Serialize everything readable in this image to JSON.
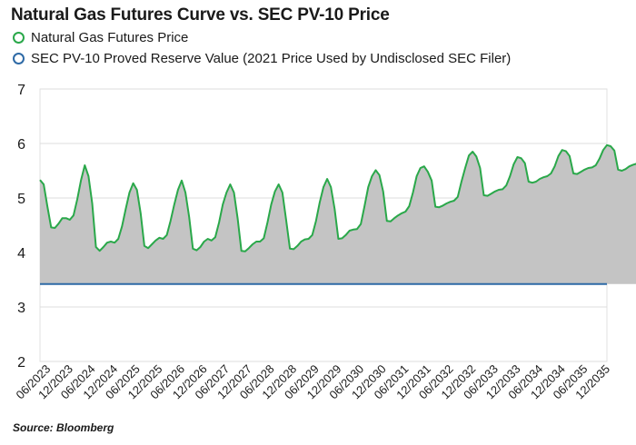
{
  "chart_data": {
    "type": "area",
    "title": "Natural Gas Futures Curve vs. SEC PV-10 Price",
    "source": "Source: Bloomberg",
    "xlabel": "",
    "ylabel": "",
    "ylim": [
      2,
      7
    ],
    "yticks": [
      "7",
      "6",
      "5",
      "4",
      "3",
      "2"
    ],
    "grid": true,
    "legend_position": "top-left",
    "x_tick_labels": [
      "06/2023",
      "12/2023",
      "06/2024",
      "12/2024",
      "06/2025",
      "12/2025",
      "06/2026",
      "12/2026",
      "06/2027",
      "12/2027",
      "06/2028",
      "12/2028",
      "06/2029",
      "12/2029",
      "06/2030",
      "12/2030",
      "06/2031",
      "12/2031",
      "06/2032",
      "12/2032",
      "06/2033",
      "12/2033",
      "06/2034",
      "12/2034",
      "06/2035",
      "12/2035"
    ],
    "x_start": "04/2023",
    "x_end": "12/2035",
    "series": [
      {
        "name": "Natural Gas Futures Price",
        "color": "#2aa84a",
        "fill": "#c4c4c4",
        "values": [
          5.33,
          5.25,
          4.84,
          4.46,
          4.45,
          4.53,
          4.63,
          4.63,
          4.6,
          4.68,
          4.98,
          5.33,
          5.6,
          5.4,
          4.9,
          4.1,
          4.03,
          4.1,
          4.18,
          4.2,
          4.18,
          4.25,
          4.48,
          4.8,
          5.1,
          5.27,
          5.15,
          4.72,
          4.12,
          4.08,
          4.15,
          4.22,
          4.27,
          4.25,
          4.32,
          4.58,
          4.88,
          5.15,
          5.32,
          5.1,
          4.65,
          4.07,
          4.04,
          4.1,
          4.2,
          4.25,
          4.22,
          4.28,
          4.55,
          4.88,
          5.1,
          5.25,
          5.1,
          4.62,
          4.03,
          4.02,
          4.08,
          4.15,
          4.2,
          4.2,
          4.26,
          4.55,
          4.88,
          5.12,
          5.25,
          5.1,
          4.6,
          4.07,
          4.06,
          4.12,
          4.2,
          4.24,
          4.25,
          4.32,
          4.58,
          4.92,
          5.2,
          5.35,
          5.2,
          4.8,
          4.25,
          4.26,
          4.32,
          4.4,
          4.42,
          4.43,
          4.52,
          4.85,
          5.2,
          5.4,
          5.51,
          5.42,
          5.12,
          4.58,
          4.57,
          4.63,
          4.68,
          4.72,
          4.75,
          4.85,
          5.1,
          5.4,
          5.55,
          5.58,
          5.48,
          5.32,
          4.84,
          4.83,
          4.86,
          4.9,
          4.93,
          4.95,
          5.02,
          5.3,
          5.55,
          5.78,
          5.85,
          5.76,
          5.55,
          5.05,
          5.04,
          5.08,
          5.12,
          5.15,
          5.16,
          5.23,
          5.4,
          5.62,
          5.75,
          5.73,
          5.64,
          5.3,
          5.28,
          5.3,
          5.35,
          5.38,
          5.4,
          5.45,
          5.58,
          5.77,
          5.88,
          5.86,
          5.77,
          5.45,
          5.44,
          5.48,
          5.52,
          5.55,
          5.56,
          5.6,
          5.72,
          5.88,
          5.97,
          5.95,
          5.87,
          5.52,
          5.5,
          5.53,
          5.58,
          5.61,
          5.63,
          5.67,
          5.75,
          5.89
        ]
      },
      {
        "name": "SEC PV-10 Proved Reserve Value (2021 Price Used by Undisclosed SEC Filer)",
        "color": "#2e6aa6",
        "constant": 3.42
      }
    ]
  }
}
